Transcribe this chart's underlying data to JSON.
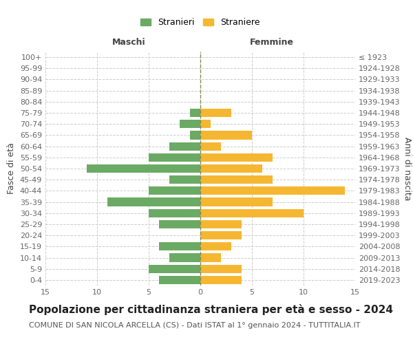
{
  "age_groups": [
    "0-4",
    "5-9",
    "10-14",
    "15-19",
    "20-24",
    "25-29",
    "30-34",
    "35-39",
    "40-44",
    "45-49",
    "50-54",
    "55-59",
    "60-64",
    "65-69",
    "70-74",
    "75-79",
    "80-84",
    "85-89",
    "90-94",
    "95-99",
    "100+"
  ],
  "birth_years": [
    "2019-2023",
    "2014-2018",
    "2009-2013",
    "2004-2008",
    "1999-2003",
    "1994-1998",
    "1989-1993",
    "1984-1988",
    "1979-1983",
    "1974-1978",
    "1969-1973",
    "1964-1968",
    "1959-1963",
    "1954-1958",
    "1949-1953",
    "1944-1948",
    "1939-1943",
    "1934-1938",
    "1929-1933",
    "1924-1928",
    "≤ 1923"
  ],
  "males": [
    4,
    5,
    3,
    4,
    0,
    4,
    5,
    9,
    5,
    3,
    11,
    5,
    3,
    1,
    2,
    1,
    0,
    0,
    0,
    0,
    0
  ],
  "females": [
    4,
    4,
    2,
    3,
    4,
    4,
    10,
    7,
    14,
    7,
    6,
    7,
    2,
    5,
    1,
    3,
    0,
    0,
    0,
    0,
    0
  ],
  "male_color": "#6aaa64",
  "female_color": "#f5b731",
  "background_color": "#ffffff",
  "grid_color": "#cccccc",
  "center_line_color": "#888855",
  "title": "Popolazione per cittadinanza straniera per età e sesso - 2024",
  "subtitle": "COMUNE DI SAN NICOLA ARCELLA (CS) - Dati ISTAT al 1° gennaio 2024 - TUTTITALIA.IT",
  "xlabel_left": "Maschi",
  "xlabel_right": "Femmine",
  "ylabel_left": "Fasce di età",
  "ylabel_right": "Anni di nascita",
  "legend_males": "Stranieri",
  "legend_females": "Straniere",
  "xlim": 15,
  "title_fontsize": 11,
  "subtitle_fontsize": 8,
  "axis_label_fontsize": 9,
  "tick_fontsize": 8
}
